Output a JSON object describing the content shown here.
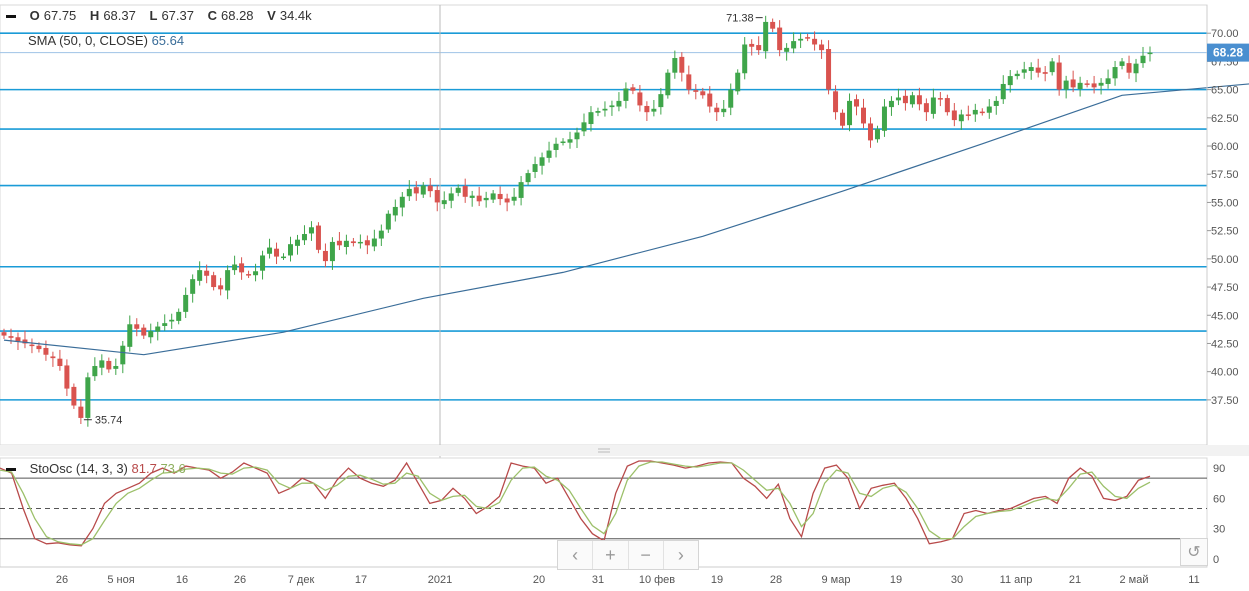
{
  "ohlcv": {
    "o_label": "O",
    "o_value": "67.75",
    "h_label": "H",
    "h_value": "68.37",
    "l_label": "L",
    "l_value": "67.37",
    "c_label": "C",
    "c_value": "68.28",
    "v_label": "V",
    "v_value": "34.4k"
  },
  "sma_legend": {
    "label": "SMA (50, 0, CLOSE)",
    "value": "65.64"
  },
  "stoch_legend": {
    "label": "StoOsc (14, 3, 3)",
    "k_value": "81.7",
    "d_value": "73.6"
  },
  "last_price": "68.28",
  "annotations": {
    "high_label": "71.38",
    "low_label": "35.74"
  },
  "navigation": {
    "prev": "‹",
    "zoom_in": "+",
    "zoom_out": "−",
    "next": "›",
    "reset": "↺"
  },
  "colors": {
    "up": "#3fa54a",
    "down": "#d9534f",
    "sma": "#3a6d99",
    "hline": "#1a9bd7",
    "k": "#b84a4a",
    "d": "#9cc06a",
    "price_tag": "#4a8fd0"
  },
  "chart_data": [
    {
      "type": "candlestick",
      "ylim": [
        33.5,
        72.5
      ],
      "y_ticks": [
        "70.00",
        "67.50",
        "65.00",
        "62.50",
        "60.00",
        "57.50",
        "55.00",
        "52.50",
        "50.00",
        "47.50",
        "45.00",
        "42.50",
        "40.00",
        "37.50"
      ],
      "x_ticks": [
        "26",
        "5 ноя",
        "16",
        "26",
        "7 дек",
        "17",
        "2021",
        "20",
        "31",
        "10 фев",
        "19",
        "28",
        "9 мар",
        "19",
        "30",
        "11 апр",
        "21",
        "2 май",
        "11"
      ],
      "horizontal_levels": [
        70.0,
        65.0,
        61.5,
        56.5,
        49.3,
        43.6,
        37.5
      ],
      "crosshair_x_label": "2021",
      "high": {
        "value": 71.38,
        "label": "71.38"
      },
      "low": {
        "value": 35.74,
        "label": "35.74"
      },
      "close_path": [
        43.2,
        43.0,
        42.7,
        42.5,
        42.3,
        42.0,
        41.5,
        41.2,
        40.5,
        38.5,
        37.0,
        35.9,
        39.5,
        40.5,
        41.0,
        40.2,
        40.5,
        42.3,
        44.2,
        43.8,
        43.2,
        43.6,
        44.0,
        44.3,
        44.6,
        45.3,
        46.8,
        48.2,
        49.0,
        48.5,
        47.5,
        47.3,
        49.0,
        49.5,
        48.8,
        48.6,
        48.9,
        50.3,
        51.0,
        50.2,
        50.2,
        51.3,
        51.7,
        52.2,
        52.8,
        50.8,
        49.8,
        51.5,
        51.2,
        51.6,
        51.4,
        51.5,
        51.2,
        51.8,
        52.5,
        54.0,
        54.6,
        55.5,
        56.2,
        55.8,
        56.5,
        56.0,
        55.0,
        55.2,
        55.8,
        56.3,
        55.5,
        55.6,
        55.1,
        55.4,
        55.8,
        55.3,
        55.0,
        55.5,
        56.8,
        57.6,
        58.4,
        59.0,
        59.6,
        60.2,
        60.4,
        60.6,
        61.2,
        62.1,
        63.0,
        63.1,
        63.3,
        63.6,
        64.0,
        65.1,
        64.9,
        63.6,
        63.0,
        63.3,
        64.6,
        66.5,
        67.8,
        66.5,
        65.0,
        64.8,
        64.5,
        63.5,
        63.0,
        63.3,
        65.0,
        66.5,
        69.0,
        68.8,
        68.5,
        71.0,
        70.4,
        68.5,
        68.7,
        69.3,
        69.5,
        69.6,
        69.0,
        68.5,
        65.0,
        63.0,
        61.8,
        64.0,
        63.5,
        62.0,
        60.5,
        61.5,
        63.5,
        64.0,
        64.3,
        63.8,
        64.5,
        63.7,
        63.0,
        64.3,
        64.2,
        63.0,
        62.3,
        62.8,
        62.7,
        63.2,
        63.0,
        63.5,
        64.0,
        65.5,
        66.2,
        66.4,
        66.8,
        67.0,
        66.5,
        66.4,
        67.5,
        65.0,
        65.8,
        65.2,
        65.6,
        65.5,
        65.2,
        65.6,
        66.0,
        67.0,
        67.5,
        66.5,
        67.3,
        68.0,
        68.28
      ],
      "sma": [
        {
          "x": 0,
          "y": 42.8
        },
        {
          "x": 20,
          "y": 41.5
        },
        {
          "x": 40,
          "y": 43.5
        },
        {
          "x": 60,
          "y": 46.5
        },
        {
          "x": 80,
          "y": 48.8
        },
        {
          "x": 100,
          "y": 52.0
        },
        {
          "x": 120,
          "y": 56.0
        },
        {
          "x": 140,
          "y": 60.2
        },
        {
          "x": 160,
          "y": 64.5
        },
        {
          "x": 180,
          "y": 65.6
        }
      ]
    },
    {
      "type": "line",
      "ylim": [
        -8,
        100
      ],
      "y_ticks": [
        "90",
        "60",
        "30",
        "0"
      ],
      "levels": [
        80,
        50,
        20
      ],
      "series": [
        {
          "name": "%K",
          "values": [
            90,
            85,
            50,
            20,
            15,
            16,
            14,
            13,
            30,
            55,
            65,
            70,
            75,
            85,
            90,
            85,
            92,
            90,
            88,
            80,
            86,
            95,
            90,
            85,
            65,
            70,
            80,
            75,
            60,
            78,
            90,
            80,
            75,
            72,
            78,
            95,
            75,
            55,
            58,
            70,
            60,
            45,
            52,
            62,
            95,
            92,
            90,
            75,
            80,
            60,
            40,
            25,
            18,
            65,
            92,
            97,
            97,
            95,
            93,
            90,
            92,
            95,
            96,
            95,
            80,
            72,
            60,
            74,
            40,
            22,
            65,
            90,
            93,
            80,
            50,
            70,
            73,
            75,
            60,
            40,
            15,
            17,
            20,
            45,
            48,
            45,
            48,
            50,
            55,
            60,
            62,
            55,
            80,
            90,
            82,
            60,
            58,
            62,
            78,
            82
          ]
        },
        {
          "name": "%D",
          "values": [
            88,
            86,
            65,
            40,
            22,
            17,
            15,
            14,
            20,
            38,
            55,
            65,
            70,
            78,
            85,
            86,
            89,
            90,
            89,
            85,
            84,
            90,
            91,
            88,
            75,
            70,
            75,
            75,
            68,
            73,
            82,
            83,
            79,
            74,
            75,
            85,
            82,
            65,
            58,
            62,
            63,
            52,
            50,
            56,
            78,
            90,
            91,
            82,
            78,
            68,
            50,
            33,
            25,
            45,
            78,
            92,
            96,
            96,
            94,
            92,
            91,
            93,
            95,
            95,
            88,
            78,
            68,
            70,
            55,
            32,
            45,
            75,
            88,
            85,
            65,
            62,
            70,
            73,
            66,
            50,
            28,
            20,
            20,
            32,
            42,
            45,
            47,
            48,
            52,
            57,
            60,
            58,
            70,
            84,
            86,
            72,
            62,
            60,
            70,
            76
          ]
        }
      ]
    }
  ]
}
